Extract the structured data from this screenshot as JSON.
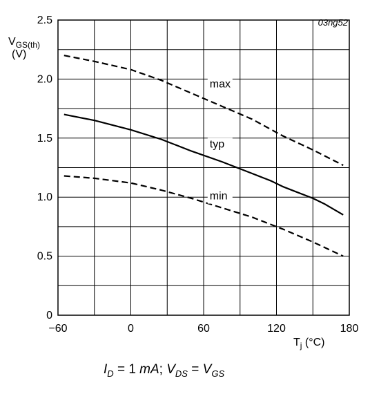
{
  "chart_data": {
    "type": "line",
    "figure_id": "03ng52",
    "ylabel": {
      "main": "V",
      "sub": "GS(th)",
      "unit": "(V)"
    },
    "xlabel": {
      "main": "T",
      "sub": "j",
      "unit": " (°C)"
    },
    "xlim": [
      -60,
      180
    ],
    "ylim": [
      0,
      2.5
    ],
    "x_ticks": [
      {
        "v": -60,
        "label": "−60"
      },
      {
        "v": 0,
        "label": "0"
      },
      {
        "v": 60,
        "label": "60"
      },
      {
        "v": 120,
        "label": "120"
      },
      {
        "v": 180,
        "label": "180"
      }
    ],
    "y_ticks": [
      {
        "v": 0,
        "label": "0"
      },
      {
        "v": 0.5,
        "label": "0.5"
      },
      {
        "v": 1.0,
        "label": "1.0"
      },
      {
        "v": 1.5,
        "label": "1.5"
      },
      {
        "v": 2.0,
        "label": "2.0"
      },
      {
        "v": 2.5,
        "label": "2.5"
      }
    ],
    "x_grid": [
      -60,
      -30,
      0,
      30,
      60,
      90,
      120,
      150,
      180
    ],
    "y_grid": [
      0,
      0.25,
      0.5,
      0.75,
      1.0,
      1.25,
      1.5,
      1.75,
      2.0,
      2.25,
      2.5
    ],
    "grid": true,
    "series": [
      {
        "name": "max",
        "style": "dashed",
        "label_at": [
          65,
          1.93
        ],
        "x": [
          -55,
          -30,
          0,
          25,
          50,
          75,
          100,
          125,
          150,
          175
        ],
        "y": [
          2.2,
          2.15,
          2.08,
          1.99,
          1.88,
          1.77,
          1.66,
          1.52,
          1.4,
          1.27
        ]
      },
      {
        "name": "typ",
        "style": "solid",
        "label_at": [
          65,
          1.42
        ],
        "x": [
          -55,
          -30,
          0,
          25,
          50,
          75,
          100,
          115,
          125,
          135,
          150,
          160,
          170,
          175
        ],
        "y": [
          1.7,
          1.65,
          1.57,
          1.49,
          1.39,
          1.3,
          1.2,
          1.14,
          1.09,
          1.05,
          0.99,
          0.94,
          0.88,
          0.85
        ]
      },
      {
        "name": "min",
        "style": "dashed",
        "label_at": [
          65,
          0.98
        ],
        "x": [
          -55,
          -30,
          0,
          25,
          50,
          75,
          100,
          125,
          150,
          175
        ],
        "y": [
          1.18,
          1.16,
          1.12,
          1.06,
          0.99,
          0.91,
          0.83,
          0.73,
          0.62,
          0.5
        ]
      }
    ]
  },
  "caption": {
    "i_sym": "I",
    "i_sub": "D",
    "i_val": " = 1 ",
    "i_unit": "mA",
    "sep": "; ",
    "v1_sym": "V",
    "v1_sub": "DS",
    "eq": " = ",
    "v2_sym": "V",
    "v2_sub": "GS"
  }
}
